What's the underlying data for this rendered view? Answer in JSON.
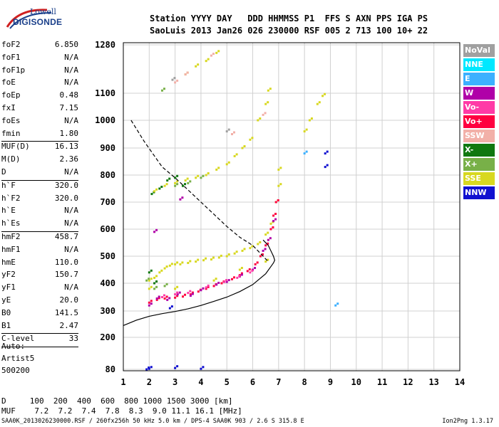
{
  "logo": {
    "line1": "Lowell",
    "line2": "DIGISONDE"
  },
  "header": {
    "line1": "Station YYYY DAY   DDD HHMMSS P1  FFS S AXN PPS IGA PS",
    "line2": "SaoLuis 2013 Jan26 026 230000 RSF 005 2 713 100 10+ 22"
  },
  "params": [
    {
      "name": "foF2",
      "value": "6.850"
    },
    {
      "name": "foF1",
      "value": "N/A"
    },
    {
      "name": "foF1p",
      "value": "N/A"
    },
    {
      "name": "foE",
      "value": "N/A"
    },
    {
      "name": "foEp",
      "value": "0.48"
    },
    {
      "name": "fxI",
      "value": "7.15"
    },
    {
      "name": "foEs",
      "value": "N/A"
    },
    {
      "name": "fmin",
      "value": "1.80"
    },
    {
      "sep": true
    },
    {
      "name": "MUF(D)",
      "value": "16.13"
    },
    {
      "name": "M(D)",
      "value": "2.36"
    },
    {
      "name": "D",
      "value": "N/A"
    },
    {
      "sep": true
    },
    {
      "name": "h`F",
      "value": "320.0"
    },
    {
      "name": "h`F2",
      "value": "320.0"
    },
    {
      "name": "h`E",
      "value": "N/A"
    },
    {
      "name": "h`Es",
      "value": "N/A"
    },
    {
      "sep": true
    },
    {
      "name": "hmF2",
      "value": "458.7"
    },
    {
      "name": "hmF1",
      "value": "N/A"
    },
    {
      "name": "hmE",
      "value": "110.0"
    },
    {
      "name": "yF2",
      "value": "150.7"
    },
    {
      "name": "yF1",
      "value": "N/A"
    },
    {
      "name": "yE",
      "value": "20.0"
    },
    {
      "name": "B0",
      "value": "141.5"
    },
    {
      "name": "B1",
      "value": "2.47"
    },
    {
      "sep": true
    },
    {
      "name": "C-level",
      "value": "33"
    },
    {
      "sep": true
    }
  ],
  "auto": {
    "line1": "Auto:",
    "line2": "Artist5",
    "line3": "500200"
  },
  "legend": [
    {
      "label": "NoVal",
      "color": "#a0a0a0"
    },
    {
      "label": "NNE",
      "color": "#00e8ff"
    },
    {
      "label": "E",
      "color": "#3cb0ff"
    },
    {
      "label": "W",
      "color": "#b000a8"
    },
    {
      "label": "Vo-",
      "color": "#ff3aa6"
    },
    {
      "label": "Vo+",
      "color": "#ff0040"
    },
    {
      "label": "SSW",
      "color": "#f2b0a8"
    },
    {
      "label": "X-",
      "color": "#107810"
    },
    {
      "label": "X+",
      "color": "#78b048"
    },
    {
      "label": "SSE",
      "color": "#d8d820"
    },
    {
      "label": "NNW",
      "color": "#1010d0"
    }
  ],
  "bottom": {
    "line1": "D     100  200  400  600  800 1000 1500 3000 [km]",
    "line2": "MUF    7.2  7.2  7.4  7.8  8.3  9.0 11.1 16.1 [MHz]"
  },
  "footer": "SAA0K_2013026230000.RSF / 260fx256h 50 kHz 5.0 km / DPS-4 SAA0K 903 / 2.6 S 315.8 E",
  "version": "Ion2Png 1.3.17",
  "chart_data": {
    "type": "scatter",
    "x_ticks": [
      "1",
      "2",
      "3",
      "4",
      "5",
      "6",
      "7",
      "8",
      "9",
      "10",
      "11",
      "12",
      "13",
      "14"
    ],
    "y_ticks": [
      "80",
      "200",
      "300",
      "400",
      "500",
      "600",
      "700",
      "800",
      "900",
      "1000",
      "1100",
      "1280"
    ],
    "xlim": [
      1,
      14
    ],
    "y_axis_note": "nonlinear: 80 at bottom, 1280 at top",
    "grid": true,
    "series": [
      {
        "color": "#d8d820",
        "points": [
          [
            2.0,
            410
          ],
          [
            2.2,
            420
          ],
          [
            2.4,
            440
          ],
          [
            2.6,
            455
          ],
          [
            2.8,
            465
          ],
          [
            3.0,
            470
          ],
          [
            3.2,
            470
          ],
          [
            3.5,
            475
          ],
          [
            3.8,
            480
          ],
          [
            4.1,
            485
          ],
          [
            4.4,
            488
          ],
          [
            4.7,
            495
          ],
          [
            5.0,
            500
          ],
          [
            5.3,
            510
          ],
          [
            5.6,
            520
          ],
          [
            5.9,
            530
          ],
          [
            6.2,
            545
          ],
          [
            6.5,
            580
          ],
          [
            6.7,
            620
          ],
          [
            6.9,
            700
          ],
          [
            7.0,
            760
          ],
          [
            7.0,
            820
          ],
          [
            2.0,
            380
          ],
          [
            3.0,
            380
          ],
          [
            4.5,
            410
          ],
          [
            5.5,
            450
          ],
          [
            6.5,
            480
          ]
        ]
      },
      {
        "color": "#ff0040",
        "points": [
          [
            2.0,
            330
          ],
          [
            2.3,
            340
          ],
          [
            2.6,
            345
          ],
          [
            3.0,
            348
          ],
          [
            3.3,
            352
          ],
          [
            3.6,
            360
          ],
          [
            3.9,
            370
          ],
          [
            4.2,
            380
          ],
          [
            4.5,
            390
          ],
          [
            4.8,
            400
          ],
          [
            5.2,
            415
          ],
          [
            5.5,
            430
          ],
          [
            5.8,
            445
          ],
          [
            6.1,
            470
          ],
          [
            6.3,
            500
          ],
          [
            6.5,
            540
          ],
          [
            6.7,
            600
          ],
          [
            6.8,
            650
          ],
          [
            6.9,
            700
          ]
        ]
      },
      {
        "color": "#b000a8",
        "points": [
          [
            2.0,
            320
          ],
          [
            2.3,
            345
          ],
          [
            2.7,
            340
          ],
          [
            3.1,
            360
          ],
          [
            3.6,
            355
          ],
          [
            4.0,
            375
          ],
          [
            4.6,
            395
          ],
          [
            5.0,
            405
          ],
          [
            5.5,
            425
          ],
          [
            6.0,
            450
          ],
          [
            6.4,
            520
          ],
          [
            6.6,
            560
          ],
          [
            6.8,
            630
          ],
          [
            2.2,
            590
          ],
          [
            3.2,
            710
          ]
        ]
      },
      {
        "color": "#ff3aa6",
        "points": [
          [
            2.5,
            350
          ],
          [
            3.0,
            360
          ],
          [
            3.5,
            365
          ],
          [
            4.2,
            385
          ],
          [
            4.9,
            405
          ],
          [
            5.4,
            420
          ],
          [
            5.9,
            440
          ]
        ]
      },
      {
        "color": "#107810",
        "points": [
          [
            2.0,
            440
          ],
          [
            2.1,
            730
          ],
          [
            2.4,
            750
          ],
          [
            2.7,
            780
          ],
          [
            3.0,
            790
          ],
          [
            3.3,
            760
          ],
          [
            2.2,
            400
          ]
        ]
      },
      {
        "color": "#78b048",
        "points": [
          [
            2.2,
            380
          ],
          [
            2.6,
            390
          ],
          [
            3.0,
            760
          ],
          [
            3.5,
            770
          ],
          [
            4.0,
            790
          ],
          [
            1.9,
            410
          ],
          [
            2.5,
            1110
          ]
        ]
      },
      {
        "color": "#d8d820",
        "points": [
          [
            2.2,
            740
          ],
          [
            2.6,
            760
          ],
          [
            3.0,
            770
          ],
          [
            3.4,
            780
          ],
          [
            3.8,
            790
          ],
          [
            4.2,
            800
          ],
          [
            4.6,
            820
          ],
          [
            5.0,
            840
          ],
          [
            5.3,
            870
          ],
          [
            5.6,
            900
          ],
          [
            5.9,
            930
          ],
          [
            6.2,
            1000
          ],
          [
            6.5,
            1060
          ],
          [
            6.6,
            1110
          ],
          [
            8.0,
            960
          ],
          [
            8.2,
            1000
          ],
          [
            8.5,
            1060
          ],
          [
            8.7,
            1090
          ],
          [
            4.6,
            1250
          ],
          [
            3.4,
            1170
          ],
          [
            3.8,
            1200
          ],
          [
            4.2,
            1220
          ]
        ]
      },
      {
        "color": "#f2b0a8",
        "points": [
          [
            3.0,
            1140
          ],
          [
            3.4,
            1170
          ],
          [
            4.4,
            1240
          ],
          [
            5.2,
            950
          ],
          [
            6.4,
            1020
          ]
        ]
      },
      {
        "color": "#1010d0",
        "points": [
          [
            1.9,
            80
          ],
          [
            2.0,
            82
          ],
          [
            3.0,
            85
          ],
          [
            4.0,
            82
          ],
          [
            2.8,
            310
          ],
          [
            8.8,
            830
          ],
          [
            8.8,
            880
          ]
        ]
      },
      {
        "color": "#3cb0ff",
        "points": [
          [
            9.2,
            320
          ],
          [
            8.0,
            880
          ]
        ]
      },
      {
        "color": "#a0a0a0",
        "points": [
          [
            2.9,
            1150
          ],
          [
            5.0,
            960
          ]
        ]
      }
    ],
    "curves": [
      {
        "style": "dashed",
        "points": [
          [
            1.3,
            1000
          ],
          [
            1.8,
            925
          ],
          [
            2.5,
            830
          ],
          [
            3.0,
            790
          ],
          [
            3.5,
            745
          ],
          [
            4.0,
            700
          ],
          [
            4.5,
            655
          ],
          [
            5.0,
            610
          ],
          [
            5.5,
            570
          ],
          [
            6.0,
            540
          ],
          [
            6.3,
            510
          ],
          [
            6.6,
            480
          ]
        ]
      },
      {
        "style": "solid",
        "points": [
          [
            1.0,
            245
          ],
          [
            1.5,
            265
          ],
          [
            2.0,
            280
          ],
          [
            2.5,
            290
          ],
          [
            3.0,
            298
          ],
          [
            3.5,
            308
          ],
          [
            4.0,
            320
          ],
          [
            4.5,
            335
          ],
          [
            5.0,
            350
          ],
          [
            5.5,
            370
          ],
          [
            6.0,
            395
          ],
          [
            6.5,
            435
          ],
          [
            6.8,
            475
          ],
          [
            6.85,
            485
          ],
          [
            6.8,
            500
          ],
          [
            6.6,
            540
          ],
          [
            6.4,
            560
          ]
        ]
      }
    ]
  }
}
